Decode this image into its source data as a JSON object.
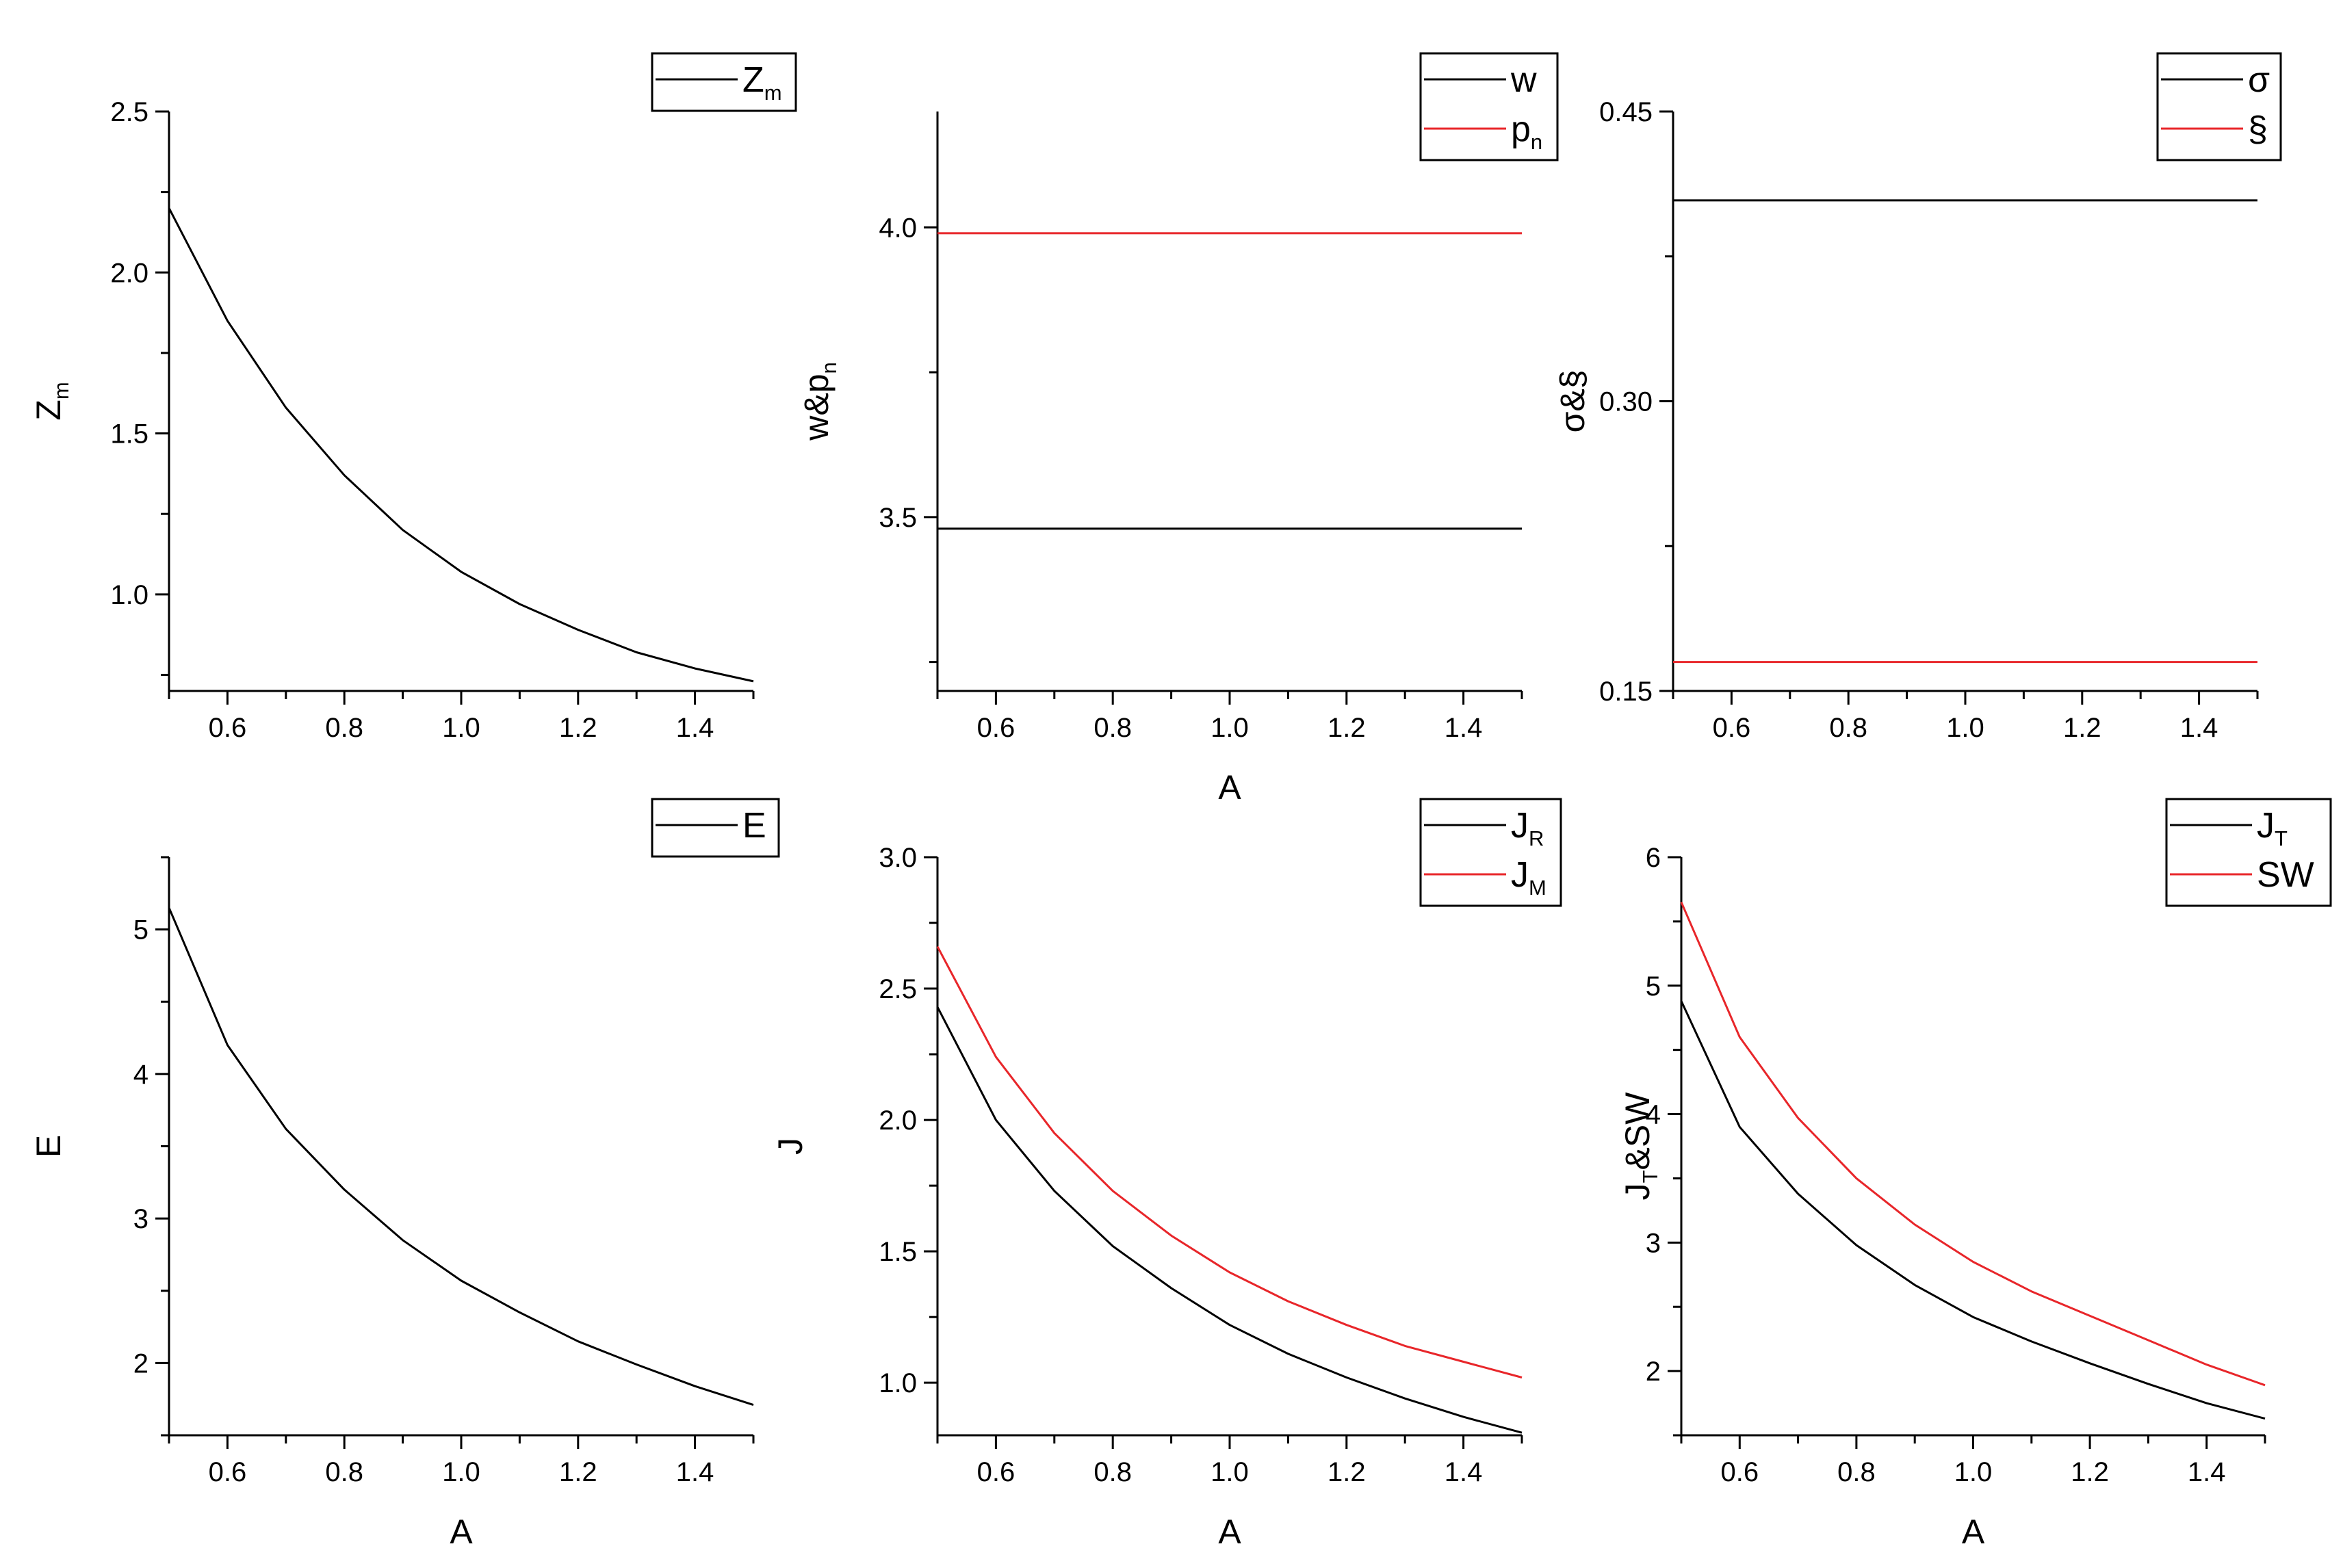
{
  "colors": {
    "black": "#000000",
    "red": "#e8262a"
  },
  "chart_data": [
    {
      "type": "line",
      "panel": "top-left",
      "xlabel": "",
      "ylabel": {
        "base": "Z",
        "sub": "m"
      },
      "xlim": [
        0.5,
        1.5
      ],
      "ylim": [
        0.7,
        2.5
      ],
      "xticks": [
        "0.6",
        "0.8",
        "1.0",
        "1.2",
        "1.4"
      ],
      "yticks": [
        {
          "v": 1.0,
          "label": "1.0"
        },
        {
          "v": 1.5,
          "label": "1.5"
        },
        {
          "v": 2.0,
          "label": "2.0"
        },
        {
          "v": 2.5,
          "label": "2.5"
        }
      ],
      "grid": false,
      "legend_position": "top-right",
      "series": [
        {
          "name": {
            "base": "Z",
            "sub": "m"
          },
          "color": "#000000",
          "x": [
            0.5,
            0.6,
            0.7,
            0.8,
            0.9,
            1.0,
            1.1,
            1.2,
            1.3,
            1.4,
            1.5
          ],
          "y": [
            2.2,
            1.85,
            1.58,
            1.37,
            1.2,
            1.07,
            0.97,
            0.89,
            0.82,
            0.77,
            0.73
          ]
        }
      ]
    },
    {
      "type": "line",
      "panel": "top-middle",
      "xlabel": "A",
      "ylabel": {
        "base": "w&p",
        "sub": "n"
      },
      "xlim": [
        0.5,
        1.5
      ],
      "ylim": [
        3.2,
        4.2
      ],
      "xticks": [
        "0.6",
        "0.8",
        "1.0",
        "1.2",
        "1.4"
      ],
      "yticks": [
        {
          "v": 3.5,
          "label": "3.5"
        },
        {
          "v": 4.0,
          "label": "4.0"
        }
      ],
      "grid": false,
      "legend_position": "top-right",
      "series": [
        {
          "name": {
            "base": "w",
            "sub": ""
          },
          "color": "#000000",
          "x": [
            0.5,
            1.5
          ],
          "y": [
            3.48,
            3.48
          ]
        },
        {
          "name": {
            "base": "p",
            "sub": "n"
          },
          "color": "#e8262a",
          "x": [
            0.5,
            1.5
          ],
          "y": [
            3.99,
            3.99
          ]
        }
      ]
    },
    {
      "type": "line",
      "panel": "top-right",
      "xlabel": "",
      "ylabel": {
        "base": "σ&§",
        "sub": ""
      },
      "xlim": [
        0.5,
        1.5
      ],
      "ylim": [
        0.15,
        0.45
      ],
      "xticks": [
        "0.6",
        "0.8",
        "1.0",
        "1.2",
        "1.4"
      ],
      "yticks": [
        {
          "v": 0.15,
          "label": "0.15"
        },
        {
          "v": 0.3,
          "label": "0.30"
        },
        {
          "v": 0.45,
          "label": "0.45"
        }
      ],
      "grid": false,
      "legend_position": "top-right",
      "series": [
        {
          "name": {
            "base": "σ",
            "sub": ""
          },
          "color": "#000000",
          "x": [
            0.5,
            1.5
          ],
          "y": [
            0.404,
            0.404
          ]
        },
        {
          "name": {
            "base": "§",
            "sub": ""
          },
          "color": "#e8262a",
          "x": [
            0.5,
            1.5
          ],
          "y": [
            0.165,
            0.165
          ]
        }
      ]
    },
    {
      "type": "line",
      "panel": "bottom-left",
      "xlabel": "A",
      "ylabel": {
        "base": "E",
        "sub": ""
      },
      "xlim": [
        0.5,
        1.5
      ],
      "ylim": [
        1.5,
        5.5
      ],
      "xticks": [
        "0.6",
        "0.8",
        "1.0",
        "1.2",
        "1.4"
      ],
      "yticks": [
        {
          "v": 2,
          "label": "2"
        },
        {
          "v": 3,
          "label": "3"
        },
        {
          "v": 4,
          "label": "4"
        },
        {
          "v": 5,
          "label": "5"
        }
      ],
      "grid": false,
      "legend_position": "top-right",
      "series": [
        {
          "name": {
            "base": "E",
            "sub": ""
          },
          "color": "#000000",
          "x": [
            0.5,
            0.6,
            0.7,
            0.8,
            0.9,
            1.0,
            1.1,
            1.2,
            1.3,
            1.4,
            1.5
          ],
          "y": [
            5.15,
            4.2,
            3.62,
            3.2,
            2.85,
            2.57,
            2.35,
            2.15,
            1.99,
            1.84,
            1.71
          ]
        }
      ]
    },
    {
      "type": "line",
      "panel": "bottom-middle",
      "xlabel": "A",
      "ylabel": {
        "base": "J",
        "sub": ""
      },
      "xlim": [
        0.5,
        1.5
      ],
      "ylim": [
        0.8,
        3.0
      ],
      "xticks": [
        "0.6",
        "0.8",
        "1.0",
        "1.2",
        "1.4"
      ],
      "yticks": [
        {
          "v": 1.0,
          "label": "1.0"
        },
        {
          "v": 1.5,
          "label": "1.5"
        },
        {
          "v": 2.0,
          "label": "2.0"
        },
        {
          "v": 2.5,
          "label": "2.5"
        },
        {
          "v": 3.0,
          "label": "3.0"
        }
      ],
      "grid": false,
      "legend_position": "top-right",
      "series": [
        {
          "name": {
            "base": "J",
            "sub": "R"
          },
          "color": "#000000",
          "x": [
            0.5,
            0.6,
            0.7,
            0.8,
            0.9,
            1.0,
            1.1,
            1.2,
            1.3,
            1.4,
            1.5
          ],
          "y": [
            2.43,
            2.0,
            1.73,
            1.52,
            1.36,
            1.22,
            1.11,
            1.02,
            0.94,
            0.87,
            0.81
          ]
        },
        {
          "name": {
            "base": "J",
            "sub": "M"
          },
          "color": "#e8262a",
          "x": [
            0.5,
            0.6,
            0.7,
            0.8,
            0.9,
            1.0,
            1.1,
            1.2,
            1.3,
            1.4,
            1.5
          ],
          "y": [
            2.66,
            2.24,
            1.95,
            1.73,
            1.56,
            1.42,
            1.31,
            1.22,
            1.14,
            1.08,
            1.02
          ]
        }
      ]
    },
    {
      "type": "line",
      "panel": "bottom-right",
      "xlabel": "A",
      "ylabel": {
        "base": "J",
        "sub": "T",
        "rest": "&SW"
      },
      "xlim": [
        0.5,
        1.5
      ],
      "ylim": [
        1.5,
        6.0
      ],
      "xticks": [
        "0.6",
        "0.8",
        "1.0",
        "1.2",
        "1.4"
      ],
      "yticks": [
        {
          "v": 2,
          "label": "2"
        },
        {
          "v": 3,
          "label": "3"
        },
        {
          "v": 4,
          "label": "4"
        },
        {
          "v": 5,
          "label": "5"
        },
        {
          "v": 6,
          "label": "6"
        }
      ],
      "grid": false,
      "legend_position": "top-right",
      "series": [
        {
          "name": {
            "base": "J",
            "sub": "T"
          },
          "color": "#000000",
          "x": [
            0.5,
            0.6,
            0.7,
            0.8,
            0.9,
            1.0,
            1.1,
            1.2,
            1.3,
            1.4,
            1.5
          ],
          "y": [
            4.88,
            3.9,
            3.38,
            2.98,
            2.67,
            2.42,
            2.23,
            2.06,
            1.9,
            1.75,
            1.63
          ]
        },
        {
          "name": {
            "base": "SW",
            "sub": ""
          },
          "color": "#e8262a",
          "x": [
            0.5,
            0.6,
            0.7,
            0.8,
            0.9,
            1.0,
            1.1,
            1.2,
            1.3,
            1.4,
            1.5
          ],
          "y": [
            5.65,
            4.6,
            3.97,
            3.5,
            3.14,
            2.85,
            2.62,
            2.43,
            2.24,
            2.05,
            1.89
          ]
        }
      ]
    }
  ]
}
